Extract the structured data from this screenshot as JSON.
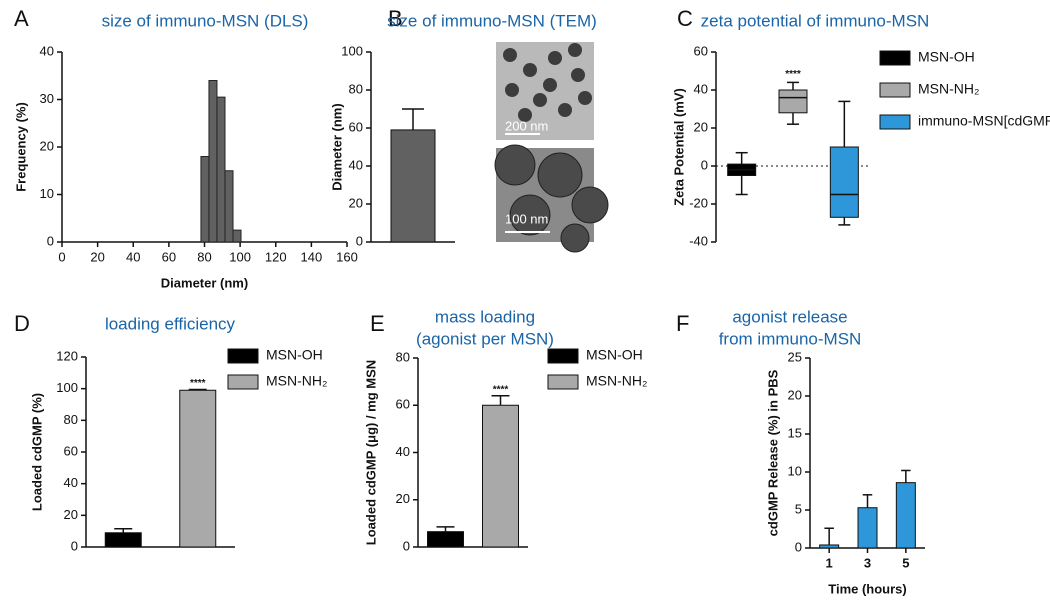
{
  "chart_data": [
    {
      "type": "histogram",
      "label": "A",
      "title": "size of immuno-MSN (DLS)",
      "x_label": "Diameter (nm)",
      "y_label": "Frequency (%)",
      "bins": [
        78,
        82.5,
        87,
        91.5,
        96,
        100.5
      ],
      "values": [
        18,
        34,
        30.5,
        15,
        2.5
      ],
      "color": "#616161",
      "xlim": [
        0,
        160
      ],
      "xticks": [
        0,
        20,
        40,
        60,
        80,
        100,
        120,
        140,
        160
      ],
      "ylim": [
        0,
        40
      ],
      "yticks": [
        0,
        10,
        20,
        30,
        40
      ]
    },
    {
      "type": "bar",
      "label": "B",
      "title": "size of immuno-MSN (TEM)",
      "y_label": "Diameter (nm)",
      "categories": [
        null
      ],
      "values": [
        59
      ],
      "errors": [
        11
      ],
      "color": "#616161",
      "ylim": [
        0,
        100
      ],
      "yticks": [
        0,
        20,
        40,
        60,
        80,
        100
      ],
      "annotations": [
        "200 nm",
        "100 nm"
      ]
    },
    {
      "type": "box",
      "label": "C",
      "title": "zeta potential of immuno-MSN",
      "y_label": "Zeta Potential (mV)",
      "ylim": [
        -40,
        60
      ],
      "yticks": [
        -40,
        -20,
        0,
        20,
        40,
        60
      ],
      "reference_line": 0,
      "series": [
        {
          "name": "MSN-OH",
          "color": "#000000",
          "min": -15,
          "q1": -5,
          "median": -2,
          "q3": 1,
          "max": 7
        },
        {
          "name": "MSN-NH₂",
          "color": "#a9a9a9",
          "min": 22,
          "q1": 28,
          "median": 36,
          "q3": 40,
          "max": 44,
          "significance": "****"
        },
        {
          "name": "immuno-MSN[cdGMP]",
          "color": "#2e97d9",
          "min": -31,
          "q1": -27,
          "median": -15,
          "q3": 10,
          "max": 34
        }
      ]
    },
    {
      "type": "bar",
      "label": "D",
      "title": "loading efficiency",
      "y_label": "Loaded cdGMP (%)",
      "ylim": [
        0,
        120
      ],
      "yticks": [
        0,
        20,
        40,
        60,
        80,
        100,
        120
      ],
      "series": [
        {
          "name": "MSN-OH",
          "color": "#000000",
          "values": [
            9
          ],
          "errors": [
            2.5
          ]
        },
        {
          "name": "MSN-NH₂",
          "color": "#a9a9a9",
          "values": [
            99
          ],
          "errors": [
            0.5
          ],
          "significance": "****"
        }
      ]
    },
    {
      "type": "bar",
      "label": "E",
      "title": [
        "mass loading",
        "(agonist per MSN)"
      ],
      "y_label": "Loaded cdGMP (μg) / mg MSN",
      "ylim": [
        0,
        80
      ],
      "yticks": [
        0,
        20,
        40,
        60,
        80
      ],
      "series": [
        {
          "name": "MSN-OH",
          "color": "#000000",
          "values": [
            6.5
          ],
          "errors": [
            2
          ]
        },
        {
          "name": "MSN-NH₂",
          "color": "#a9a9a9",
          "values": [
            60
          ],
          "errors": [
            4
          ],
          "significance": "****"
        }
      ]
    },
    {
      "type": "bar",
      "label": "F",
      "title": [
        "agonist release",
        "from immuno-MSN"
      ],
      "x_label": "Time (hours)",
      "y_label": "cdGMP Release (%) in PBS",
      "categories": [
        "1",
        "3",
        "5"
      ],
      "values": [
        0.4,
        5.3,
        8.6
      ],
      "errors": [
        2.2,
        1.7,
        1.6
      ],
      "color": "#2e97d9",
      "ylim": [
        0,
        25
      ],
      "yticks": [
        0,
        5,
        10,
        15,
        20,
        25
      ]
    }
  ]
}
